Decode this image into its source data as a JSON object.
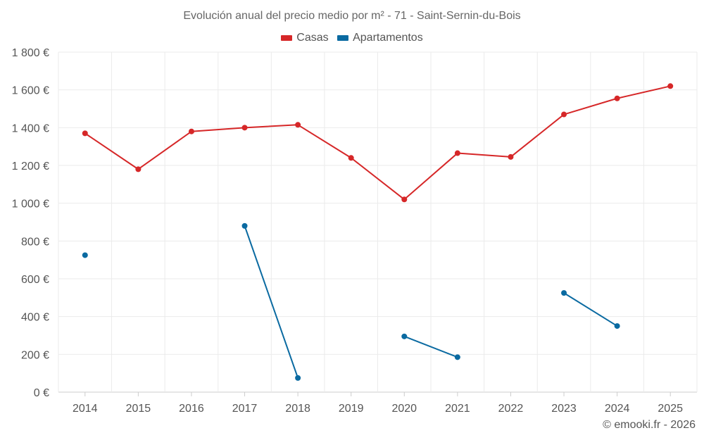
{
  "chart_data": {
    "type": "line",
    "title": "Evolución anual del precio medio por m² - 71 - Saint-Sernin-du-Bois",
    "xlabel": "",
    "ylabel": "",
    "categories": [
      "2014",
      "2015",
      "2016",
      "2017",
      "2018",
      "2019",
      "2020",
      "2021",
      "2022",
      "2023",
      "2024",
      "2025"
    ],
    "ylim": [
      0,
      1800
    ],
    "yticks": [
      0,
      200,
      400,
      600,
      800,
      1000,
      1200,
      1400,
      1600,
      1800
    ],
    "ytick_labels": [
      "0 €",
      "200 €",
      "400 €",
      "600 €",
      "800 €",
      "1 000 €",
      "1 200 €",
      "1 400 €",
      "1 600 €",
      "1 800 €"
    ],
    "grid": true,
    "legend_position": "top-center",
    "series": [
      {
        "name": "Casas",
        "color": "#d62728",
        "values": [
          1370,
          1180,
          1380,
          1400,
          1415,
          1240,
          1020,
          1265,
          1245,
          1470,
          1555,
          1620
        ]
      },
      {
        "name": "Apartamentos",
        "color": "#0a6aa1",
        "values": [
          725,
          null,
          null,
          880,
          75,
          null,
          295,
          185,
          null,
          525,
          350,
          null
        ]
      }
    ]
  },
  "credit": "© emooki.fr - 2026"
}
